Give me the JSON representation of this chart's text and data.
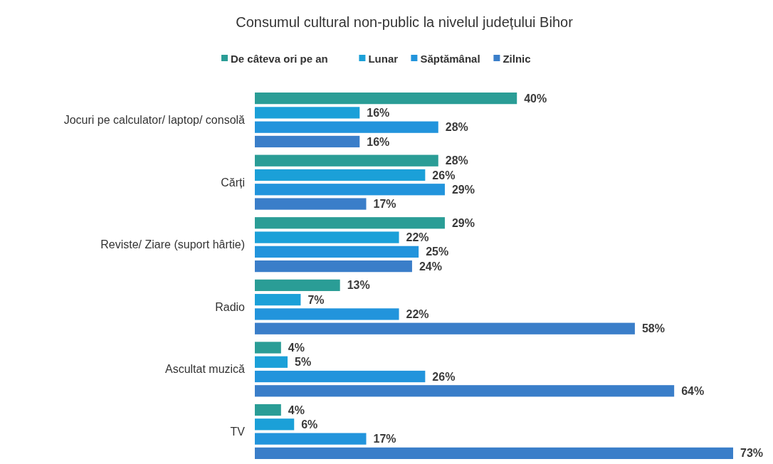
{
  "chart_data": {
    "type": "bar",
    "orientation": "horizontal",
    "title": "Consumul cultural non-public la nivelul județului Bihor",
    "categories": [
      "Jocuri pe calculator/ laptop/ consolă",
      "Cărți",
      "Reviste/ Ziare (suport hârtie)",
      "Radio",
      "Ascultat muzică",
      "TV"
    ],
    "series": [
      {
        "name": "De câteva ori pe an",
        "color": "#2a9d96",
        "values": [
          40,
          28,
          29,
          13,
          4,
          4
        ],
        "value_labels": [
          "40%",
          "28%",
          "29%",
          "13%",
          "4%",
          "4%"
        ]
      },
      {
        "name": "Lunar",
        "color": "#1ba0d8",
        "values": [
          16,
          26,
          22,
          7,
          5,
          6
        ],
        "value_labels": [
          "16%",
          "26%",
          "22%",
          "7%",
          "5%",
          "6%"
        ]
      },
      {
        "name": "Săptămânal",
        "color": "#2294dc",
        "values": [
          28,
          29,
          25,
          22,
          26,
          17
        ],
        "value_labels": [
          "28%",
          "29%",
          "25%",
          "22%",
          "26%",
          "17%"
        ]
      },
      {
        "name": "Zilnic",
        "color": "#3a7ec9",
        "values": [
          16,
          17,
          24,
          58,
          64,
          73
        ],
        "value_labels": [
          "16%",
          "17%",
          "24%",
          "58%",
          "64%",
          "73%"
        ]
      }
    ],
    "legend": "top"
  }
}
